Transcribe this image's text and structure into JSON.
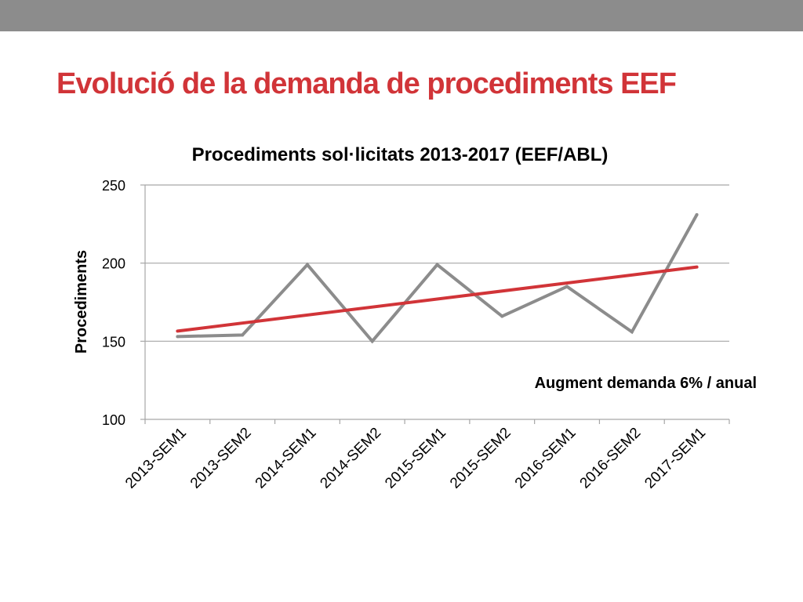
{
  "slide": {
    "title": "Evolució de la demanda de procediments EEF"
  },
  "colors": {
    "top_band": "#8c8c8c",
    "title": "#d13438",
    "series": "#8c8c8c",
    "trend": "#d13438"
  },
  "chart_data": {
    "type": "line",
    "title": "Procediments sol·licitats 2013-2017 (EEF/ABL)",
    "xlabel": "",
    "ylabel": "Procediments",
    "ylim": [
      100,
      250
    ],
    "yticks": [
      100,
      150,
      200,
      250
    ],
    "grid": true,
    "categories": [
      "2013-SEM1",
      "2013-SEM2",
      "2014-SEM1",
      "2014-SEM2",
      "2015-SEM1",
      "2015-SEM2",
      "2016-SEM1",
      "2016-SEM2",
      "2017-SEM1"
    ],
    "series": [
      {
        "values": [
          153,
          154,
          199,
          150,
          199,
          166,
          185,
          156,
          231
        ],
        "color": "#8c8c8c"
      }
    ],
    "trendline": {
      "start": 156.5,
      "end": 197.5,
      "color": "#d13438"
    },
    "annotation": "Augment demanda 6% / anual"
  }
}
